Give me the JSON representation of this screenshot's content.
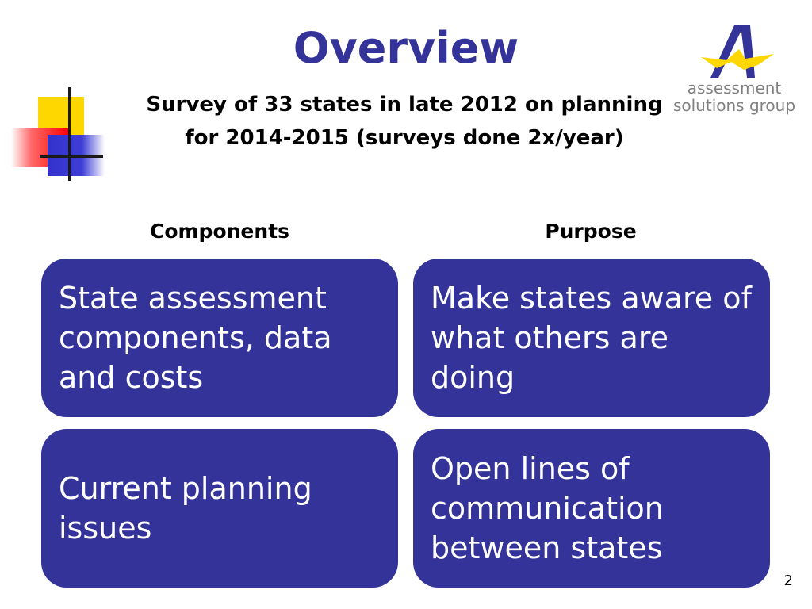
{
  "slide": {
    "title": "Overview",
    "subtitle_line1": "Survey of 33 states in late 2012 on planning",
    "subtitle_line2": "for 2014-2015  (surveys done 2x/year)",
    "logo_line1": "assessment",
    "logo_line2": "solutions group",
    "columns": {
      "left": "Components",
      "right": "Purpose"
    },
    "cards": [
      "State assessment components, data and costs",
      "Make states aware of what others are doing",
      "Current planning issues",
      "Open lines of communication between states"
    ],
    "page_number": "2"
  },
  "colors": {
    "title": "#333399",
    "card_background": "#333399",
    "logo_blue": "#333399",
    "logo_yellow": "#ffd700"
  }
}
